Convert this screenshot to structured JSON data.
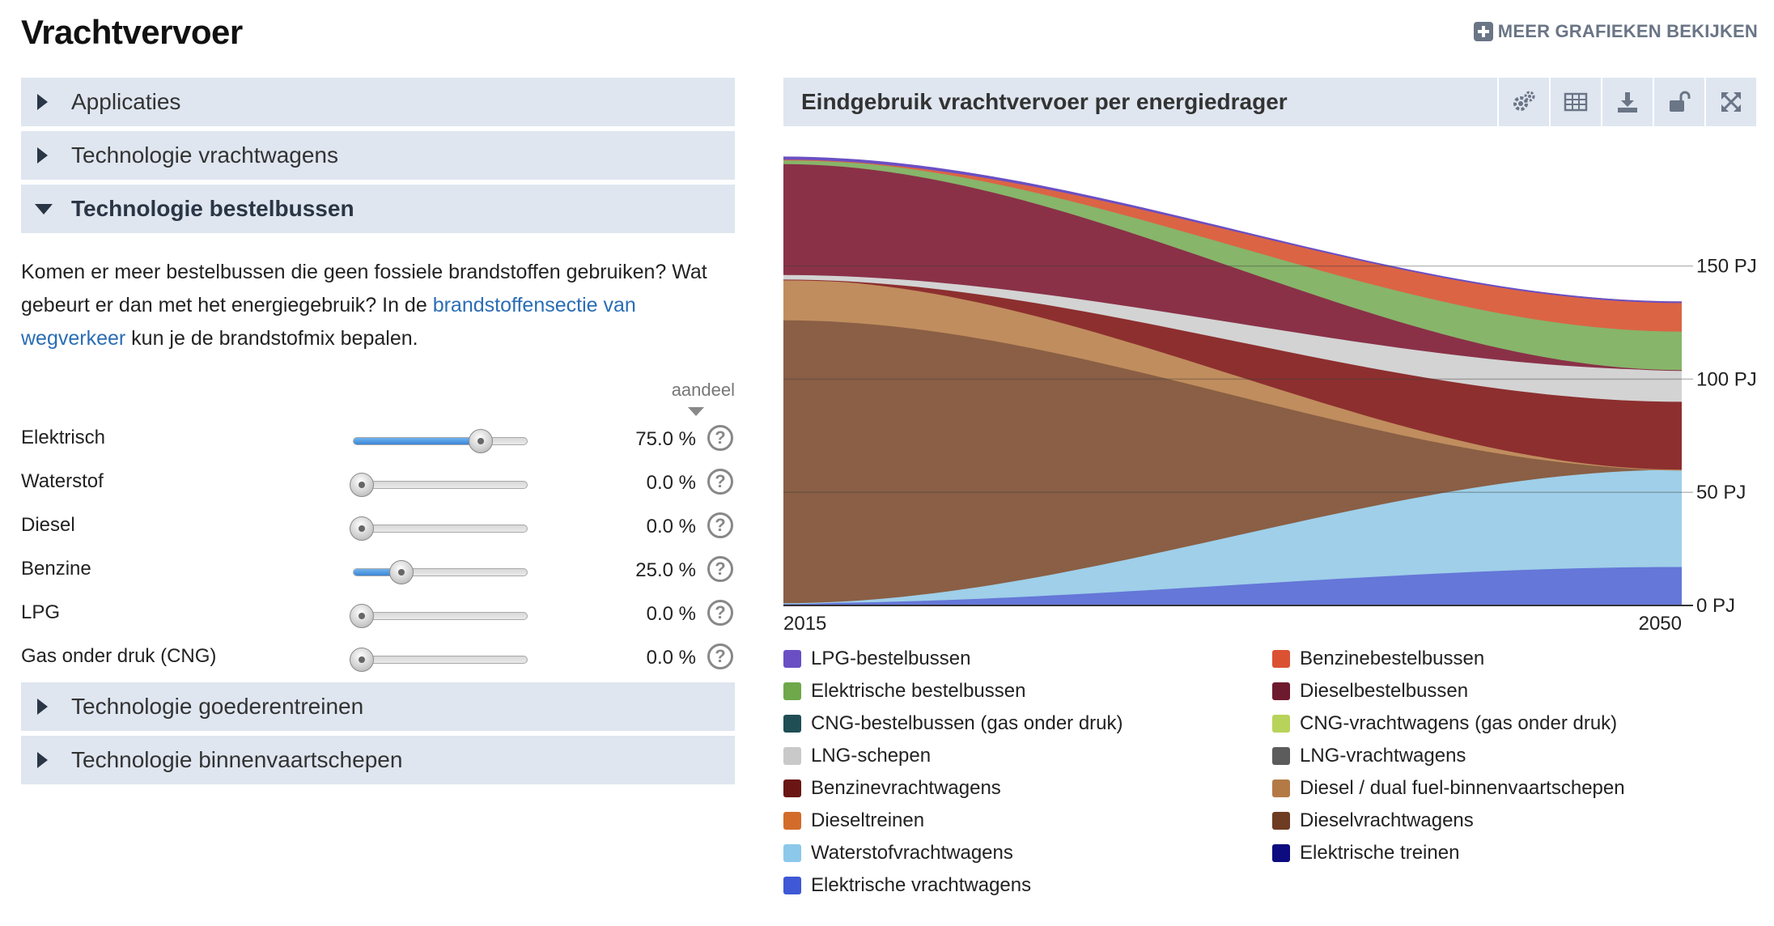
{
  "page": {
    "title": "Vrachtvervoer",
    "more_charts_label": "MEER GRAFIEKEN BEKIJKEN"
  },
  "accordion": {
    "top": [
      {
        "label": "Applicaties",
        "open": false
      },
      {
        "label": "Technologie vrachtwagens",
        "open": false
      },
      {
        "label": "Technologie bestelbussen",
        "open": true
      }
    ],
    "bottom": [
      {
        "label": "Technologie goederentreinen",
        "open": false
      },
      {
        "label": "Technologie binnenvaartschepen",
        "open": false
      }
    ]
  },
  "intro": {
    "text_before": "Komen er meer bestelbussen die geen fossiele brandstoffen gebruiken? Wat gebeurt er dan met het energiegebruik? In de ",
    "link": "brandstoffensectie van wegverkeer",
    "text_after": " kun je de brandstofmix bepalen."
  },
  "sliders": {
    "share_label": "aandeel",
    "items": [
      {
        "name": "Elektrisch",
        "value": 75.0,
        "display": "75.0 %"
      },
      {
        "name": "Waterstof",
        "value": 0.0,
        "display": "0.0 %"
      },
      {
        "name": "Diesel",
        "value": 0.0,
        "display": "0.0 %"
      },
      {
        "name": "Benzine",
        "value": 25.0,
        "display": "25.0 %"
      },
      {
        "name": "LPG",
        "value": 0.0,
        "display": "0.0 %"
      },
      {
        "name": "Gas onder druk (CNG)",
        "value": 0.0,
        "display": "0.0 %"
      }
    ],
    "help_glyph": "?"
  },
  "chart_card": {
    "title": "Eindgebruik vrachtvervoer per energiedrager",
    "tools": [
      "settings-icon",
      "table-icon",
      "download-icon",
      "unlock-icon",
      "expand-icon"
    ]
  },
  "chart_data": {
    "type": "area",
    "stacked": true,
    "title": "Eindgebruik vrachtvervoer per energiedrager",
    "x": [
      2015,
      2050
    ],
    "x_tick_labels": [
      "2015",
      "2050"
    ],
    "y_ticks": [
      0,
      50,
      100,
      150
    ],
    "y_tick_labels": [
      "0 PJ",
      "50 PJ",
      "100 PJ",
      "150 PJ"
    ],
    "ylim": [
      0,
      196
    ],
    "series": [
      {
        "name": "Elektrische vrachtwagens",
        "color": "#6577d8",
        "values": [
          1,
          17
        ]
      },
      {
        "name": "Elektrische treinen",
        "color": "#141478",
        "values": [
          0,
          0
        ]
      },
      {
        "name": "Waterstofvrachtwagens",
        "color": "#9fcfe9",
        "values": [
          0,
          43
        ]
      },
      {
        "name": "Dieselvrachtwagens",
        "color": "#8a5f45",
        "values": [
          125,
          0
        ]
      },
      {
        "name": "Diesel / dual fuel-binnenvaartschepen",
        "color": "#c08d5e",
        "values": [
          18,
          0
        ]
      },
      {
        "name": "Dieseltreinen",
        "color": "#d98a4a",
        "values": [
          0,
          0
        ]
      },
      {
        "name": "Benzinevrachtwagens",
        "color": "#8d2f2f",
        "values": [
          0,
          30
        ]
      },
      {
        "name": "LNG-vrachtwagens",
        "color": "#6a6a6a",
        "values": [
          0,
          0
        ]
      },
      {
        "name": "LNG-schepen",
        "color": "#d3d3d3",
        "values": [
          2,
          14
        ]
      },
      {
        "name": "CNG-vrachtwagens (gas onder druk)",
        "color": "#bcd36a",
        "values": [
          0,
          0
        ]
      },
      {
        "name": "CNG-bestelbussen (gas onder druk)",
        "color": "#1f4e54",
        "values": [
          0,
          0
        ]
      },
      {
        "name": "Dieselbestelbussen",
        "color": "#8a3148",
        "values": [
          49,
          0
        ]
      },
      {
        "name": "Elektrische bestelbussen",
        "color": "#87b56a",
        "values": [
          2,
          17
        ]
      },
      {
        "name": "Benzinebestelbussen",
        "color": "#db6445",
        "values": [
          0,
          13
        ]
      },
      {
        "name": "LPG-bestelbussen",
        "color": "#6a4fc4",
        "values": [
          1,
          0
        ]
      }
    ]
  },
  "legend": [
    {
      "name": "LPG-bestelbussen",
      "color": "#6a4fc4"
    },
    {
      "name": "Benzinebestelbussen",
      "color": "#db5233"
    },
    {
      "name": "Elektrische bestelbussen",
      "color": "#6ea84a"
    },
    {
      "name": "Dieselbestelbussen",
      "color": "#6e1a2e"
    },
    {
      "name": "CNG-bestelbussen (gas onder druk)",
      "color": "#1f4e54"
    },
    {
      "name": "CNG-vrachtwagens (gas onder druk)",
      "color": "#b8d35a"
    },
    {
      "name": "LNG-schepen",
      "color": "#c9c9c9"
    },
    {
      "name": "LNG-vrachtwagens",
      "color": "#5c5c5c"
    },
    {
      "name": "Benzinevrachtwagens",
      "color": "#6b1515"
    },
    {
      "name": "Diesel / dual fuel-binnenvaartschepen",
      "color": "#b37a45"
    },
    {
      "name": "Dieseltreinen",
      "color": "#d36c2a"
    },
    {
      "name": "Dieselvrachtwagens",
      "color": "#6e3c22"
    },
    {
      "name": "Waterstofvrachtwagens",
      "color": "#8cc8ea"
    },
    {
      "name": "Elektrische treinen",
      "color": "#0c0c80"
    },
    {
      "name": "Elektrische vrachtwagens",
      "color": "#3e58d6"
    }
  ]
}
